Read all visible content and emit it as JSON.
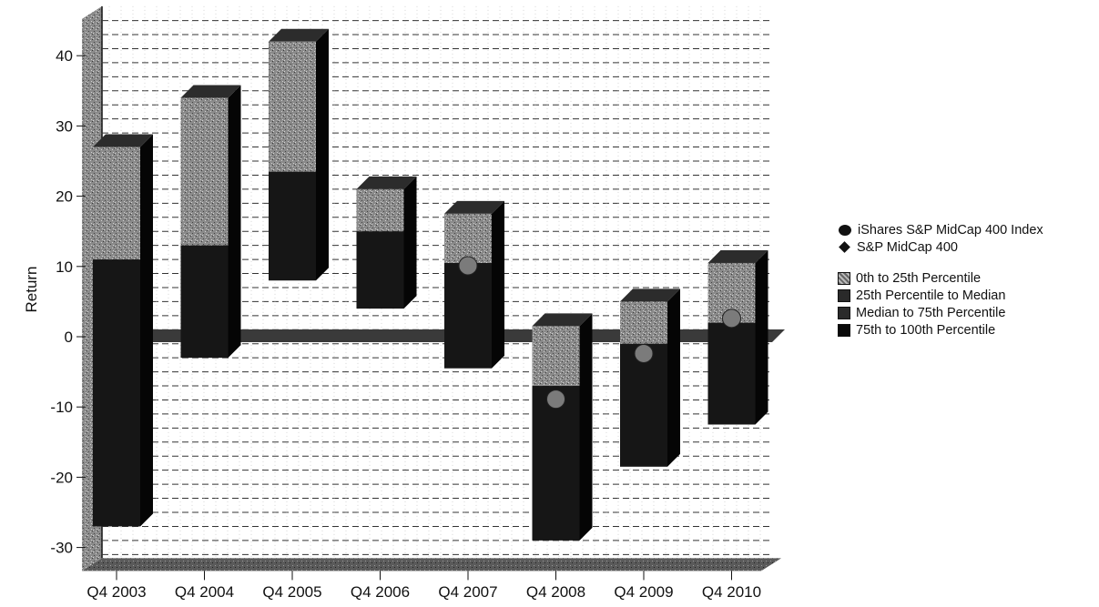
{
  "chart_data": {
    "type": "bar",
    "subtype": "floating-range (3D)",
    "ylabel": "Return",
    "xlabel": "",
    "ylim": [
      -31,
      46
    ],
    "yticks": [
      -30,
      -20,
      -10,
      0,
      10,
      20,
      30,
      40
    ],
    "grid": true,
    "legend_position": "right",
    "categories": [
      "Q4 2003",
      "Q4 2004",
      "Q4 2005",
      "Q4 2006",
      "Q4 2007",
      "Q4 2008",
      "Q4 2009",
      "Q4 2010"
    ],
    "ranges": {
      "top": [
        27,
        34,
        42,
        21,
        17.5,
        1.5,
        5,
        10.5
      ],
      "p25": [
        11,
        13,
        23.5,
        15,
        10.5,
        -7,
        -1,
        2
      ],
      "median": [
        11,
        13,
        23.5,
        15,
        10.5,
        -7,
        -1,
        2
      ],
      "p75": [
        11,
        13,
        23.5,
        15,
        10.5,
        -7,
        -1,
        2
      ],
      "bottom": [
        -27,
        -3,
        8,
        4,
        -4.5,
        -29,
        -18.5,
        -12.5
      ]
    },
    "series": [
      {
        "name": "iShares S&P MidCap 400 Index",
        "marker": "circle",
        "values": [
          null,
          null,
          null,
          null,
          10.5,
          -8.5,
          -2,
          3
        ]
      },
      {
        "name": "S&P MidCap 400",
        "marker": "diamond",
        "values": [
          null,
          null,
          null,
          null,
          null,
          null,
          null,
          null
        ]
      }
    ],
    "band_names": [
      "0th to 25th Percentile",
      "25th Percentile to Median",
      "Median to 75th Percentile",
      "75th to 100th Percentile"
    ],
    "colors": {
      "upper_band": "#7a7a7a",
      "lower_band": "#161616",
      "side": "#050505",
      "top_face": "#2c2c2c",
      "floor": "#9a9a9a",
      "wall": "#6e6e6e",
      "grid": "#333333"
    }
  },
  "legend": {
    "items": [
      {
        "label": "iShares S&P MidCap 400 Index",
        "icon": "circle-marker"
      },
      {
        "label": "S&P MidCap 400",
        "icon": "diamond-marker"
      },
      {
        "label": "0th to 25th Percentile",
        "icon": "dotted-square"
      },
      {
        "label": "25th Percentile to Median",
        "icon": "dark-square"
      },
      {
        "label": "Median to 75th Percentile",
        "icon": "dark-square"
      },
      {
        "label": "75th to 100th Percentile",
        "icon": "black-square"
      }
    ]
  }
}
